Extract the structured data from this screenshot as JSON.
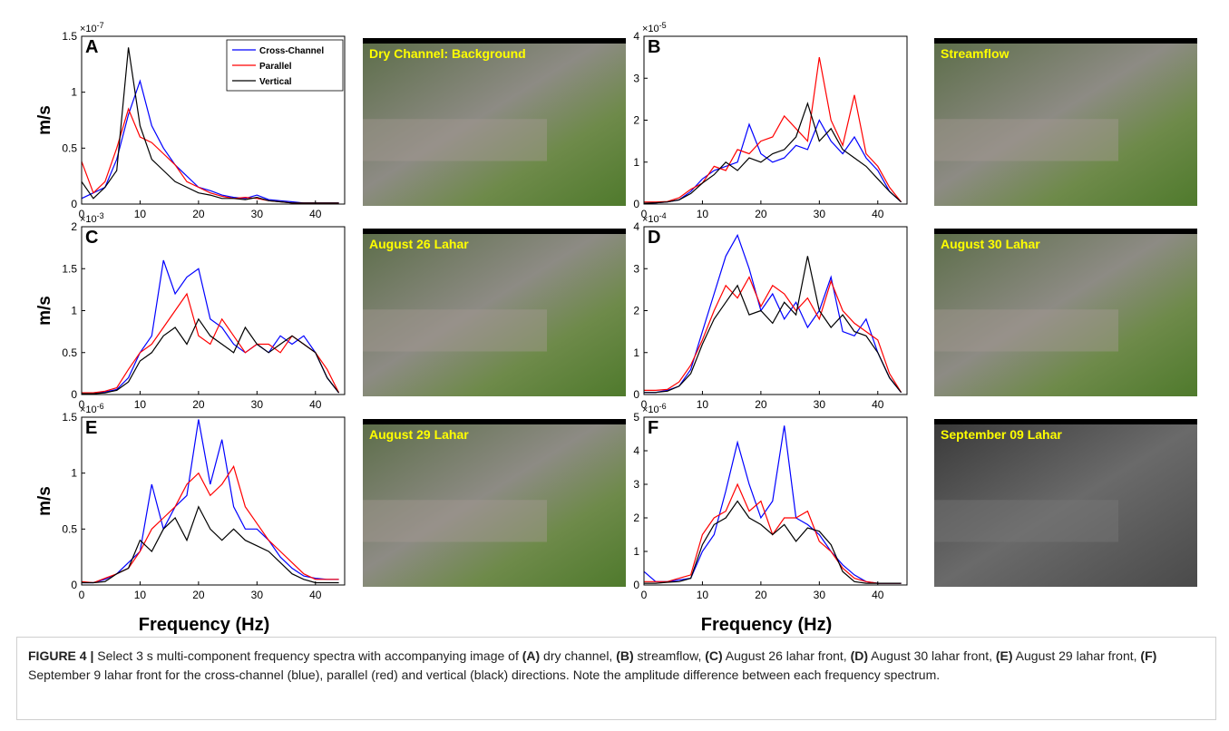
{
  "chart_data": [
    {
      "type": "line",
      "panel": "A",
      "ylabel": "m/s",
      "y_multiplier": {
        "base": "×10",
        "exp": "-7"
      },
      "legend": "top-right",
      "xlim": [
        0,
        45
      ],
      "xticks": [
        0,
        10,
        20,
        30,
        40
      ],
      "ylim": [
        0,
        1.5
      ],
      "yticks": [
        0,
        0.5,
        1,
        1.5
      ],
      "x": [
        0,
        2,
        4,
        6,
        8,
        10,
        12,
        14,
        16,
        18,
        20,
        22,
        24,
        26,
        28,
        30,
        32,
        34,
        36,
        38,
        40,
        42,
        44
      ],
      "series": [
        {
          "name": "Cross-Channel",
          "color": "#0000ff",
          "values": [
            0.05,
            0.1,
            0.15,
            0.4,
            0.8,
            1.1,
            0.7,
            0.5,
            0.35,
            0.25,
            0.15,
            0.12,
            0.08,
            0.06,
            0.05,
            0.08,
            0.04,
            0.03,
            0.02,
            0.01,
            0.01,
            0.01,
            0.01
          ]
        },
        {
          "name": "Parallel",
          "color": "#ff0000",
          "values": [
            0.38,
            0.1,
            0.2,
            0.5,
            0.85,
            0.6,
            0.55,
            0.45,
            0.35,
            0.2,
            0.15,
            0.1,
            0.07,
            0.05,
            0.06,
            0.05,
            0.03,
            0.02,
            0.01,
            0.01,
            0.01,
            0.01,
            0.01
          ]
        },
        {
          "name": "Vertical",
          "color": "#000000",
          "values": [
            0.2,
            0.05,
            0.15,
            0.3,
            1.4,
            0.7,
            0.4,
            0.3,
            0.2,
            0.15,
            0.1,
            0.08,
            0.05,
            0.05,
            0.04,
            0.06,
            0.03,
            0.02,
            0.01,
            0.01,
            0.01,
            0.01,
            0.01
          ]
        }
      ]
    },
    {
      "type": "line",
      "panel": "B",
      "y_multiplier": {
        "base": "×10",
        "exp": "-5"
      },
      "xlim": [
        0,
        45
      ],
      "xticks": [
        0,
        10,
        20,
        30,
        40
      ],
      "ylim": [
        0,
        4
      ],
      "yticks": [
        0,
        1,
        2,
        3,
        4
      ],
      "x": [
        0,
        2,
        4,
        6,
        8,
        10,
        12,
        14,
        16,
        18,
        20,
        22,
        24,
        26,
        28,
        30,
        32,
        34,
        36,
        38,
        40,
        42,
        44
      ],
      "series": [
        {
          "color": "#0000ff",
          "values": [
            0.02,
            0.03,
            0.05,
            0.1,
            0.3,
            0.6,
            0.8,
            0.9,
            1.0,
            1.9,
            1.2,
            1.0,
            1.1,
            1.4,
            1.3,
            2.0,
            1.5,
            1.2,
            1.6,
            1.1,
            0.8,
            0.3,
            0.05
          ]
        },
        {
          "color": "#ff0000",
          "values": [
            0.05,
            0.05,
            0.06,
            0.15,
            0.35,
            0.5,
            0.9,
            0.8,
            1.3,
            1.2,
            1.5,
            1.6,
            2.1,
            1.8,
            1.5,
            3.5,
            2.0,
            1.4,
            2.6,
            1.2,
            0.9,
            0.4,
            0.05
          ]
        },
        {
          "color": "#000000",
          "values": [
            0.02,
            0.03,
            0.05,
            0.1,
            0.25,
            0.5,
            0.7,
            1.0,
            0.8,
            1.1,
            1.0,
            1.2,
            1.3,
            1.6,
            2.4,
            1.5,
            1.8,
            1.3,
            1.1,
            0.9,
            0.6,
            0.3,
            0.05
          ]
        }
      ]
    },
    {
      "type": "line",
      "panel": "C",
      "ylabel": "m/s",
      "y_multiplier": {
        "base": "×10",
        "exp": "-3"
      },
      "xlim": [
        0,
        45
      ],
      "xticks": [
        0,
        10,
        20,
        30,
        40
      ],
      "ylim": [
        0,
        2
      ],
      "yticks": [
        0,
        0.5,
        1,
        1.5,
        2
      ],
      "x": [
        0,
        2,
        4,
        6,
        8,
        10,
        12,
        14,
        16,
        18,
        20,
        22,
        24,
        26,
        28,
        30,
        32,
        34,
        36,
        38,
        40,
        42,
        44
      ],
      "series": [
        {
          "color": "#0000ff",
          "values": [
            0.02,
            0.02,
            0.03,
            0.06,
            0.2,
            0.5,
            0.7,
            1.6,
            1.2,
            1.4,
            1.5,
            0.9,
            0.8,
            0.6,
            0.5,
            0.6,
            0.5,
            0.7,
            0.6,
            0.7,
            0.5,
            0.2,
            0.02
          ]
        },
        {
          "color": "#ff0000",
          "values": [
            0.02,
            0.02,
            0.04,
            0.08,
            0.3,
            0.5,
            0.6,
            0.8,
            1.0,
            1.2,
            0.7,
            0.6,
            0.9,
            0.7,
            0.5,
            0.6,
            0.6,
            0.5,
            0.7,
            0.6,
            0.5,
            0.3,
            0.02
          ]
        },
        {
          "color": "#000000",
          "values": [
            0.01,
            0.01,
            0.02,
            0.05,
            0.15,
            0.4,
            0.5,
            0.7,
            0.8,
            0.6,
            0.9,
            0.7,
            0.6,
            0.5,
            0.8,
            0.6,
            0.5,
            0.6,
            0.7,
            0.6,
            0.5,
            0.2,
            0.02
          ]
        }
      ]
    },
    {
      "type": "line",
      "panel": "D",
      "y_multiplier": {
        "base": "×10",
        "exp": "-4"
      },
      "xlim": [
        0,
        45
      ],
      "xticks": [
        0,
        10,
        20,
        30,
        40
      ],
      "ylim": [
        0,
        4
      ],
      "yticks": [
        0,
        1,
        2,
        3,
        4
      ],
      "x": [
        0,
        2,
        4,
        6,
        8,
        10,
        12,
        14,
        16,
        18,
        20,
        22,
        24,
        26,
        28,
        30,
        32,
        34,
        36,
        38,
        40,
        42,
        44
      ],
      "series": [
        {
          "color": "#0000ff",
          "values": [
            0.05,
            0.05,
            0.1,
            0.2,
            0.6,
            1.5,
            2.4,
            3.3,
            3.8,
            3.0,
            2.0,
            2.4,
            1.8,
            2.2,
            1.6,
            2.0,
            2.8,
            1.5,
            1.4,
            1.8,
            1.0,
            0.4,
            0.05
          ]
        },
        {
          "color": "#ff0000",
          "values": [
            0.1,
            0.1,
            0.12,
            0.3,
            0.7,
            1.3,
            2.0,
            2.6,
            2.3,
            2.8,
            2.1,
            2.6,
            2.4,
            2.0,
            2.3,
            1.8,
            2.7,
            2.0,
            1.7,
            1.5,
            1.3,
            0.5,
            0.05
          ]
        },
        {
          "color": "#000000",
          "values": [
            0.05,
            0.05,
            0.08,
            0.2,
            0.5,
            1.2,
            1.8,
            2.2,
            2.6,
            1.9,
            2.0,
            1.7,
            2.2,
            1.9,
            3.3,
            2.0,
            1.6,
            1.9,
            1.5,
            1.4,
            1.0,
            0.4,
            0.05
          ]
        }
      ]
    },
    {
      "type": "line",
      "panel": "E",
      "ylabel": "m/s",
      "xlabel": "Frequency (Hz)",
      "y_multiplier": {
        "base": "×10",
        "exp": "-6"
      },
      "xlim": [
        0,
        45
      ],
      "xticks": [
        0,
        10,
        20,
        30,
        40
      ],
      "ylim": [
        0,
        1.5
      ],
      "yticks": [
        0,
        0.5,
        1,
        1.5
      ],
      "x": [
        0,
        2,
        4,
        6,
        8,
        10,
        12,
        14,
        16,
        18,
        20,
        22,
        24,
        26,
        28,
        30,
        32,
        34,
        36,
        38,
        40,
        42,
        44
      ],
      "series": [
        {
          "color": "#0000ff",
          "values": [
            0.02,
            0.02,
            0.05,
            0.1,
            0.2,
            0.3,
            0.9,
            0.5,
            0.7,
            0.8,
            1.48,
            0.9,
            1.3,
            0.7,
            0.5,
            0.5,
            0.4,
            0.25,
            0.15,
            0.08,
            0.06,
            0.05,
            0.05
          ]
        },
        {
          "color": "#ff0000",
          "values": [
            0.03,
            0.02,
            0.06,
            0.1,
            0.15,
            0.3,
            0.5,
            0.6,
            0.7,
            0.9,
            1.0,
            0.8,
            0.9,
            1.06,
            0.7,
            0.55,
            0.4,
            0.3,
            0.2,
            0.1,
            0.05,
            0.05,
            0.05
          ]
        },
        {
          "color": "#000000",
          "values": [
            0.02,
            0.02,
            0.03,
            0.1,
            0.15,
            0.4,
            0.3,
            0.5,
            0.6,
            0.4,
            0.7,
            0.5,
            0.4,
            0.5,
            0.4,
            0.35,
            0.3,
            0.2,
            0.1,
            0.05,
            0.02,
            0.02,
            0.02
          ]
        }
      ]
    },
    {
      "type": "line",
      "panel": "F",
      "xlabel": "Frequency (Hz)",
      "y_multiplier": {
        "base": "×10",
        "exp": "-6"
      },
      "xlim": [
        0,
        45
      ],
      "xticks": [
        0,
        10,
        20,
        30,
        40
      ],
      "ylim": [
        0,
        5
      ],
      "yticks": [
        0,
        1,
        2,
        3,
        4,
        5
      ],
      "x": [
        0,
        2,
        4,
        6,
        8,
        10,
        12,
        14,
        16,
        18,
        20,
        22,
        24,
        26,
        28,
        30,
        32,
        34,
        36,
        38,
        40,
        42,
        44
      ],
      "series": [
        {
          "color": "#0000ff",
          "values": [
            0.4,
            0.1,
            0.1,
            0.15,
            0.2,
            1.0,
            1.5,
            2.8,
            4.25,
            3.0,
            2.0,
            2.5,
            4.75,
            2.0,
            1.8,
            1.5,
            1.0,
            0.6,
            0.3,
            0.1,
            0.05,
            0.05,
            0.05
          ]
        },
        {
          "color": "#ff0000",
          "values": [
            0.1,
            0.1,
            0.1,
            0.2,
            0.3,
            1.5,
            2.0,
            2.2,
            3.0,
            2.2,
            2.5,
            1.5,
            2.0,
            2.0,
            2.2,
            1.3,
            1.0,
            0.5,
            0.2,
            0.1,
            0.05,
            0.05,
            0.05
          ]
        },
        {
          "color": "#000000",
          "values": [
            0.05,
            0.05,
            0.08,
            0.1,
            0.2,
            1.2,
            1.8,
            2.0,
            2.5,
            2.0,
            1.8,
            1.5,
            1.8,
            1.3,
            1.7,
            1.6,
            1.2,
            0.4,
            0.1,
            0.05,
            0.05,
            0.05,
            0.05
          ]
        }
      ]
    }
  ],
  "photos": [
    {
      "caption": "Dry Channel: Background"
    },
    {
      "caption": "Streamflow"
    },
    {
      "caption": "August 26 Lahar"
    },
    {
      "caption": "August 30 Lahar"
    },
    {
      "caption": "August 29 Lahar"
    },
    {
      "caption": "September 09 Lahar",
      "grayscale": true
    }
  ],
  "caption": [
    {
      "text": "FIGURE 4 |",
      "bold": true
    },
    {
      "text": " Select 3 s multi-component frequency spectra with accompanying image of "
    },
    {
      "text": "(A)",
      "bold": true
    },
    {
      "text": " dry channel, "
    },
    {
      "text": "(B)",
      "bold": true
    },
    {
      "text": " streamflow, "
    },
    {
      "text": "(C)",
      "bold": true
    },
    {
      "text": " August 26 lahar front, "
    },
    {
      "text": "(D)",
      "bold": true
    },
    {
      "text": " August 30 lahar front, "
    },
    {
      "text": "(E)",
      "bold": true
    },
    {
      "text": " August 29 lahar front, "
    },
    {
      "text": "(F)",
      "bold": true
    },
    {
      "text": " September 9 lahar front for the cross-channel (blue), parallel (red) and vertical (black) directions. Note the amplitude difference between each frequency spectrum."
    }
  ]
}
